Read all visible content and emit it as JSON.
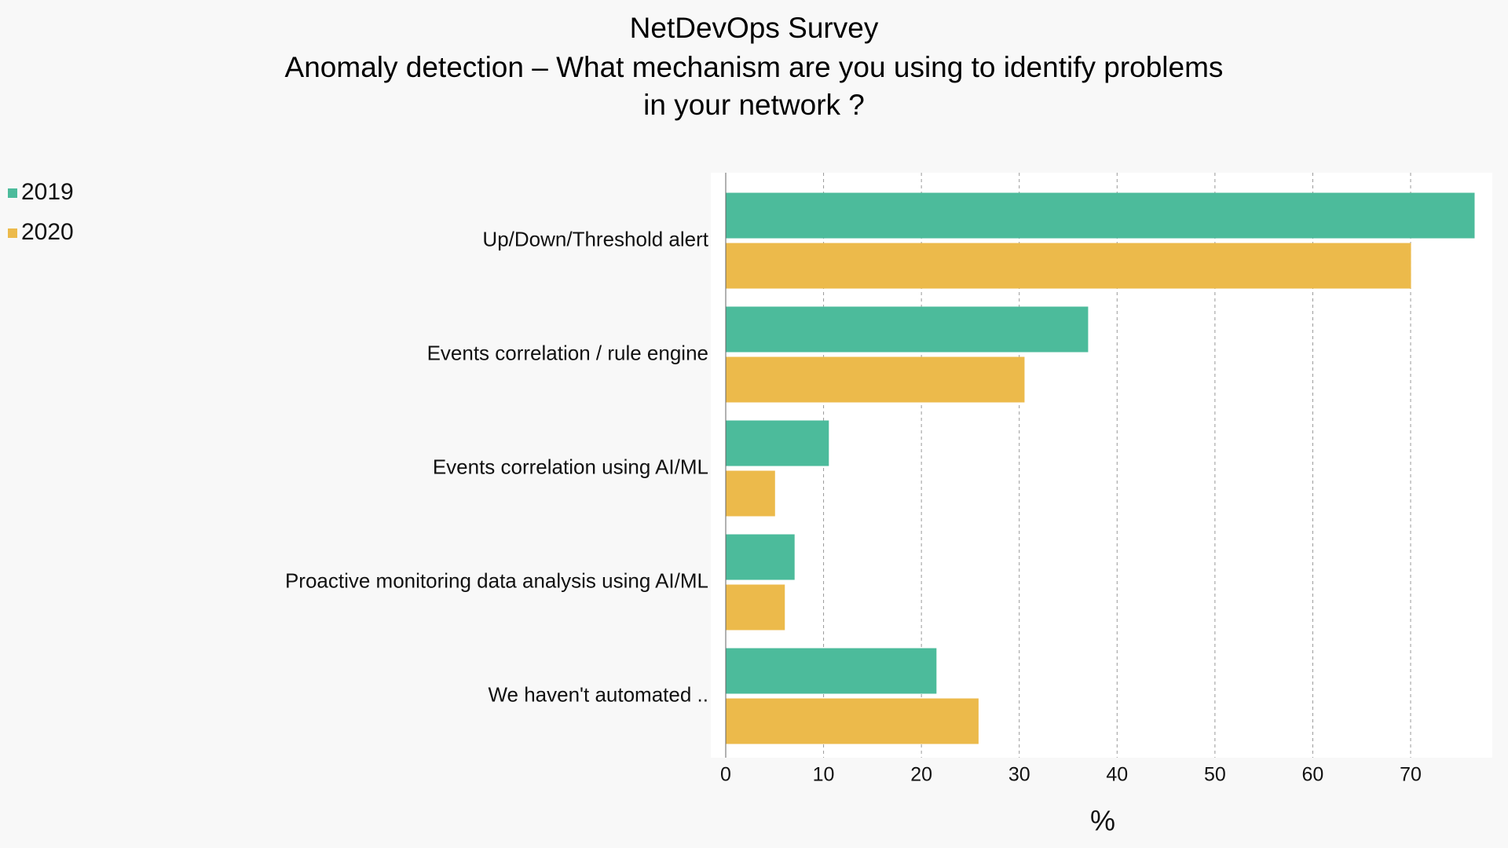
{
  "chart_data": {
    "type": "bar",
    "orientation": "horizontal",
    "title": [
      "NetDevOps Survey",
      "Anomaly detection – What mechanism are you using to identify problems",
      "in your network ?"
    ],
    "xlabel": "%",
    "ylabel": "",
    "xlim": [
      0,
      78
    ],
    "xticks": [
      0,
      10,
      20,
      30,
      40,
      50,
      60,
      70
    ],
    "grid": true,
    "legend_position": "top-left",
    "categories": [
      "Up/Down/Threshold alert",
      "Events correlation / rule engine",
      "Events correlation using AI/ML",
      "Proactive monitoring data analysis using AI/ML",
      "We haven't automated .."
    ],
    "series": [
      {
        "name": "2019",
        "color": "#4cbb9b",
        "values": [
          76.5,
          37,
          10.5,
          7,
          21.5
        ]
      },
      {
        "name": "2020",
        "color": "#ecba4b",
        "values": [
          70,
          30.5,
          5,
          6,
          25.8
        ]
      }
    ]
  }
}
